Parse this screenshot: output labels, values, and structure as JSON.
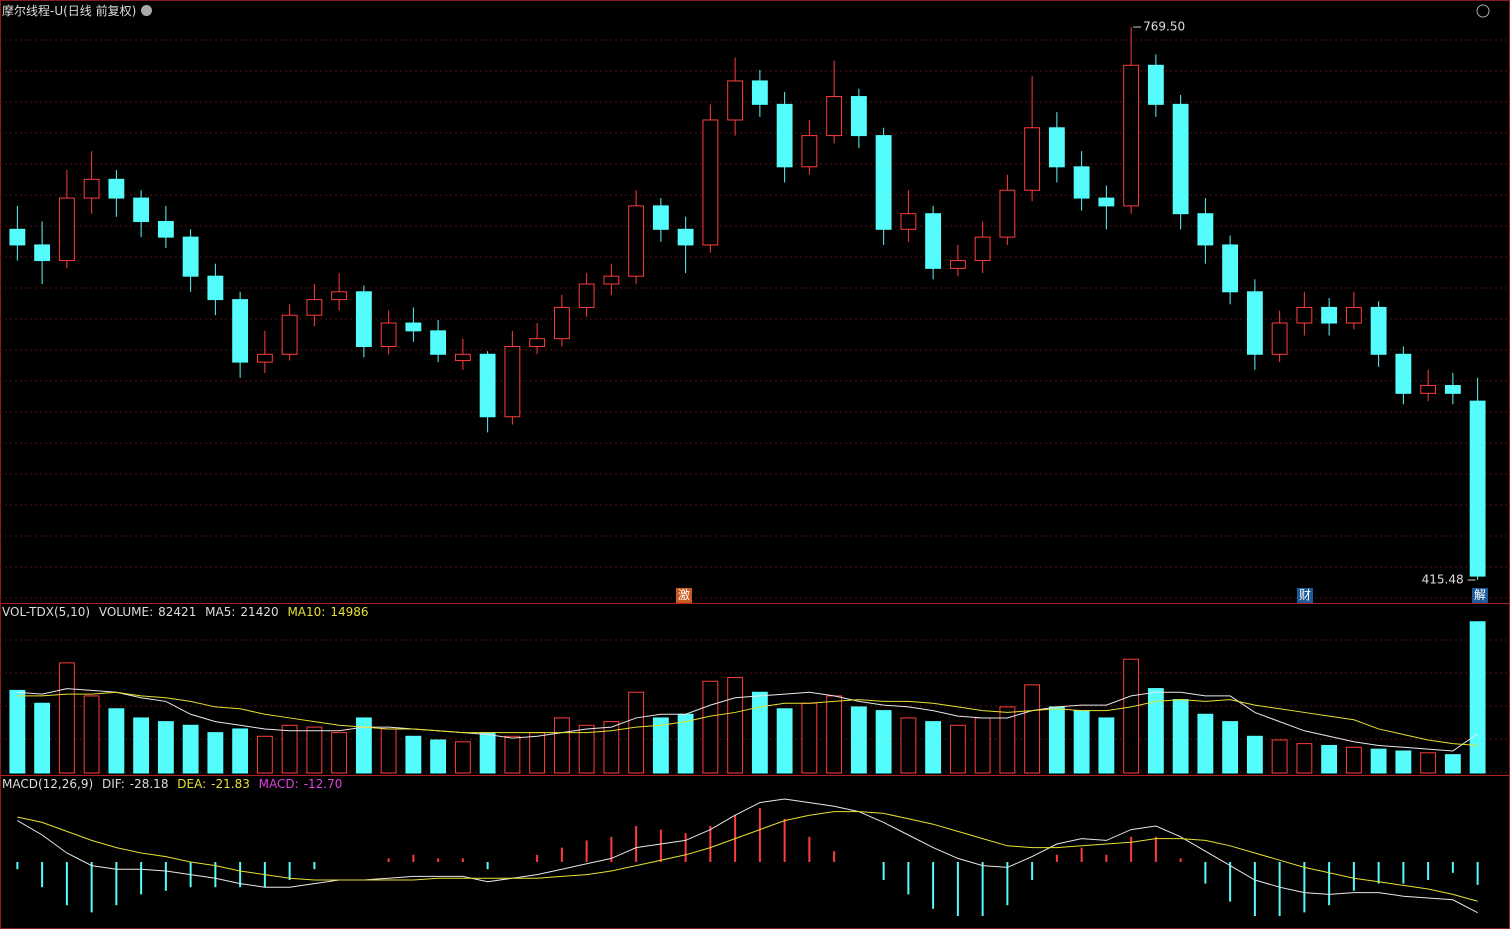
{
  "header": {
    "title": "摩尔线程-U(日线 前复权)"
  },
  "chart_data": [
    {
      "type": "candlestick",
      "ohlc": [
        [
          640,
          655,
          620,
          630
        ],
        [
          630,
          645,
          605,
          620
        ],
        [
          620,
          678,
          615,
          660
        ],
        [
          660,
          690,
          650,
          672
        ],
        [
          672,
          678,
          648,
          660
        ],
        [
          660,
          665,
          635,
          645
        ],
        [
          645,
          655,
          628,
          635
        ],
        [
          635,
          640,
          600,
          610
        ],
        [
          610,
          618,
          585,
          595
        ],
        [
          595,
          600,
          545,
          555
        ],
        [
          555,
          575,
          548,
          560
        ],
        [
          560,
          592,
          556,
          585
        ],
        [
          585,
          605,
          578,
          595
        ],
        [
          595,
          612,
          588,
          600
        ],
        [
          600,
          604,
          558,
          565
        ],
        [
          565,
          588,
          560,
          580
        ],
        [
          580,
          590,
          568,
          575
        ],
        [
          575,
          582,
          555,
          560
        ],
        [
          556,
          570,
          550,
          560
        ],
        [
          560,
          562,
          510,
          520
        ],
        [
          520,
          575,
          515,
          565
        ],
        [
          565,
          580,
          560,
          570
        ],
        [
          570,
          598,
          565,
          590
        ],
        [
          590,
          612,
          584,
          605
        ],
        [
          605,
          618,
          598,
          610
        ],
        [
          610,
          665,
          605,
          655
        ],
        [
          655,
          660,
          632,
          640
        ],
        [
          640,
          648,
          612,
          630
        ],
        [
          630,
          720,
          625,
          710
        ],
        [
          710,
          750,
          700,
          735
        ],
        [
          735,
          742,
          712,
          720
        ],
        [
          720,
          728,
          670,
          680
        ],
        [
          680,
          710,
          675,
          700
        ],
        [
          700,
          748,
          695,
          725
        ],
        [
          725,
          730,
          692,
          700
        ],
        [
          700,
          705,
          630,
          640
        ],
        [
          640,
          665,
          632,
          650
        ],
        [
          650,
          655,
          608,
          615
        ],
        [
          615,
          630,
          610,
          620
        ],
        [
          620,
          645,
          612,
          635
        ],
        [
          635,
          675,
          630,
          665
        ],
        [
          665,
          738,
          658,
          705
        ],
        [
          705,
          715,
          670,
          680
        ],
        [
          680,
          690,
          652,
          660
        ],
        [
          660,
          668,
          640,
          655
        ],
        [
          655,
          769.5,
          650,
          745
        ],
        [
          745,
          752,
          712,
          720
        ],
        [
          720,
          726,
          640,
          650
        ],
        [
          650,
          660,
          618,
          630
        ],
        [
          630,
          636,
          592,
          600
        ],
        [
          600,
          608,
          550,
          560
        ],
        [
          560,
          588,
          555,
          580
        ],
        [
          580,
          600,
          572,
          590
        ],
        [
          590,
          596,
          572,
          580
        ],
        [
          580,
          600,
          576,
          590
        ],
        [
          590,
          594,
          552,
          560
        ],
        [
          560,
          565,
          528,
          535
        ],
        [
          535,
          550,
          530,
          540
        ],
        [
          540,
          548,
          528,
          535
        ],
        [
          530,
          545,
          415.48,
          418
        ]
      ],
      "ylim": [
        402.7,
        777.2
      ],
      "up_color": "#ff3c3c",
      "down_color": "#54fcfc",
      "annotations": [
        {
          "value": 769.5,
          "label": "769.50"
        },
        {
          "value": 415.48,
          "label": "415.48"
        }
      ],
      "markers": [
        "激",
        "财",
        "解"
      ]
    },
    {
      "type": "volume",
      "title": "VOL-TDX(5,10)",
      "readouts": [
        {
          "label": "VOLUME:",
          "value": 82421
        },
        {
          "label": "MA5:",
          "value": 21420
        },
        {
          "label": "MA10:",
          "value": 14986
        }
      ],
      "values": [
        45000,
        38000,
        60000,
        42000,
        35000,
        30000,
        28000,
        26000,
        22000,
        24000,
        20000,
        26000,
        25000,
        22000,
        30000,
        24000,
        20000,
        18000,
        17000,
        22000,
        20000,
        22000,
        30000,
        26000,
        28000,
        44000,
        30000,
        32000,
        50000,
        52000,
        44000,
        35000,
        38000,
        42000,
        36000,
        34000,
        30000,
        28000,
        26000,
        30000,
        36000,
        48000,
        36000,
        34000,
        30000,
        62000,
        46000,
        40000,
        32000,
        28000,
        20000,
        18000,
        16000,
        15000,
        14000,
        13000,
        12000,
        11000,
        10000,
        82421
      ],
      "series": [
        {
          "color": "#e8e8e8",
          "values": [
            44000,
            43000,
            46000,
            45000,
            44000,
            41000,
            39000,
            32000,
            28000,
            26000,
            24000,
            23000,
            23000,
            23000,
            25000,
            25000,
            24000,
            23000,
            22000,
            21000,
            19000,
            20000,
            22000,
            24000,
            25000,
            30000,
            32000,
            32000,
            37000,
            41000,
            42000,
            43000,
            44000,
            42000,
            39000,
            37000,
            36000,
            34000,
            31000,
            30000,
            30000,
            34000,
            36000,
            37000,
            37000,
            42000,
            44000,
            44000,
            42000,
            42000,
            33000,
            28000,
            23000,
            20000,
            17000,
            15000,
            14000,
            13000,
            12000,
            21420
          ]
        },
        {
          "color": "#e8e030",
          "values": [
            42000,
            42000,
            43000,
            43000,
            44000,
            42000,
            41000,
            39000,
            36000,
            35000,
            32000,
            30000,
            28000,
            26000,
            25000,
            24000,
            24000,
            23000,
            22000,
            22000,
            22000,
            22000,
            22000,
            22000,
            23000,
            25000,
            26000,
            28000,
            31000,
            33000,
            36000,
            38000,
            38000,
            39000,
            40000,
            39000,
            39000,
            38000,
            36000,
            34000,
            33000,
            34000,
            35000,
            34000,
            34000,
            36000,
            39000,
            40000,
            39000,
            40000,
            37000,
            35000,
            33000,
            31000,
            29000,
            24000,
            21000,
            18000,
            16000,
            14986
          ]
        }
      ],
      "ylim": [
        0,
        85000
      ]
    },
    {
      "type": "macd",
      "title": "MACD(12,26,9)",
      "readouts": [
        {
          "label": "DIF:",
          "value": -28.18
        },
        {
          "label": "DEA:",
          "value": -21.83
        },
        {
          "label": "MACD:",
          "value": -12.7,
          "value_label": "-12.70"
        }
      ],
      "series": [
        {
          "color": "#e8e8e8",
          "values": [
            23,
            15,
            5,
            -2,
            -4,
            -4,
            -5,
            -7,
            -9,
            -12,
            -14,
            -14,
            -12,
            -10,
            -10,
            -9,
            -8,
            -8,
            -8,
            -11,
            -9,
            -7,
            -4,
            -1,
            2,
            8,
            10,
            12,
            18,
            26,
            33,
            35,
            33,
            31,
            28,
            22,
            15,
            8,
            2,
            -2,
            -3,
            3,
            10,
            13,
            12,
            18,
            20,
            14,
            6,
            -2,
            -10,
            -14,
            -17,
            -18,
            -17,
            -17,
            -19,
            -20,
            -21,
            -28.18
          ]
        },
        {
          "color": "#e8e030",
          "values": [
            25,
            22,
            17,
            12,
            8,
            5,
            3,
            0,
            -2,
            -5,
            -7,
            -9,
            -10,
            -10,
            -10,
            -10,
            -10,
            -9,
            -9,
            -9,
            -9,
            -9,
            -8,
            -7,
            -5,
            -2,
            1,
            4,
            8,
            13,
            18,
            23,
            26,
            28,
            28,
            27,
            24,
            21,
            17,
            13,
            9,
            8,
            8,
            9,
            10,
            11,
            13,
            13,
            12,
            9,
            5,
            1,
            -3,
            -6,
            -9,
            -11,
            -13,
            -15,
            -18,
            -21.83
          ]
        }
      ],
      "hist": [
        -4,
        -14,
        -24,
        -28,
        -24,
        -18,
        -16,
        -14,
        -14,
        -14,
        -14,
        -10,
        -4,
        0,
        0,
        2,
        4,
        2,
        2,
        -4,
        0,
        4,
        8,
        12,
        14,
        20,
        18,
        16,
        20,
        26,
        30,
        24,
        14,
        6,
        0,
        -10,
        -18,
        -26,
        -30,
        -30,
        -24,
        -10,
        4,
        8,
        4,
        14,
        14,
        2,
        -12,
        -22,
        -30,
        -30,
        -28,
        -24,
        -16,
        -12,
        -12,
        -10,
        -6,
        -12.7
      ],
      "ylim": [
        -35,
        40
      ]
    }
  ]
}
